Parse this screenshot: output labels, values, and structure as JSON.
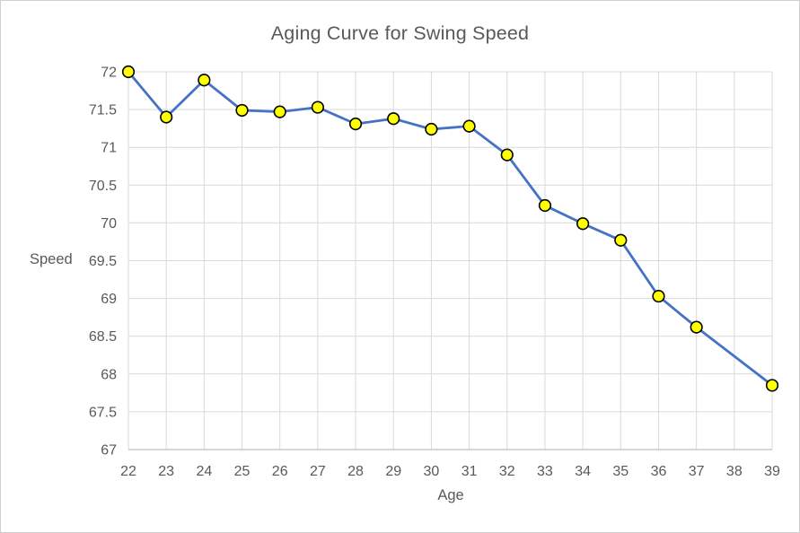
{
  "window": {
    "background": "#FFFFFF",
    "border_color": "#CFCFCF"
  },
  "chart_data": {
    "type": "line",
    "title": "Aging Curve for Swing Speed",
    "xlabel": "Age",
    "ylabel": "Speed",
    "x": [
      22,
      23,
      24,
      25,
      26,
      27,
      28,
      29,
      30,
      31,
      32,
      33,
      34,
      35,
      36,
      37,
      38,
      39
    ],
    "series": [
      {
        "name": "Speed",
        "values": [
          72.0,
          71.4,
          71.89,
          71.49,
          71.47,
          71.53,
          71.31,
          71.38,
          71.24,
          71.28,
          70.9,
          70.23,
          69.99,
          69.77,
          69.03,
          68.62,
          null,
          67.85
        ]
      }
    ],
    "ylim": [
      67,
      72
    ],
    "ytick_values": [
      72,
      71.5,
      71,
      70.5,
      70,
      69.5,
      69,
      68.5,
      68,
      67.5,
      67
    ],
    "ytick_labels": [
      "72",
      "71.5",
      "71",
      "70.5",
      "70",
      "69.5",
      "69",
      "68.5",
      "68",
      "67.5",
      "67"
    ],
    "xtick_labels": [
      "22",
      "23",
      "24",
      "25",
      "26",
      "27",
      "28",
      "29",
      "30",
      "31",
      "32",
      "33",
      "34",
      "35",
      "36",
      "37",
      "38",
      "39"
    ],
    "grid": true,
    "legend_position": "none",
    "marker_shape": "circle",
    "colors": {
      "line": "#4472C4",
      "marker_fill": "#FFFF00",
      "marker_stroke": "#000000",
      "gridline": "#D9D9D9",
      "axis_line": "#BFBFBF",
      "text": "#595959"
    }
  }
}
